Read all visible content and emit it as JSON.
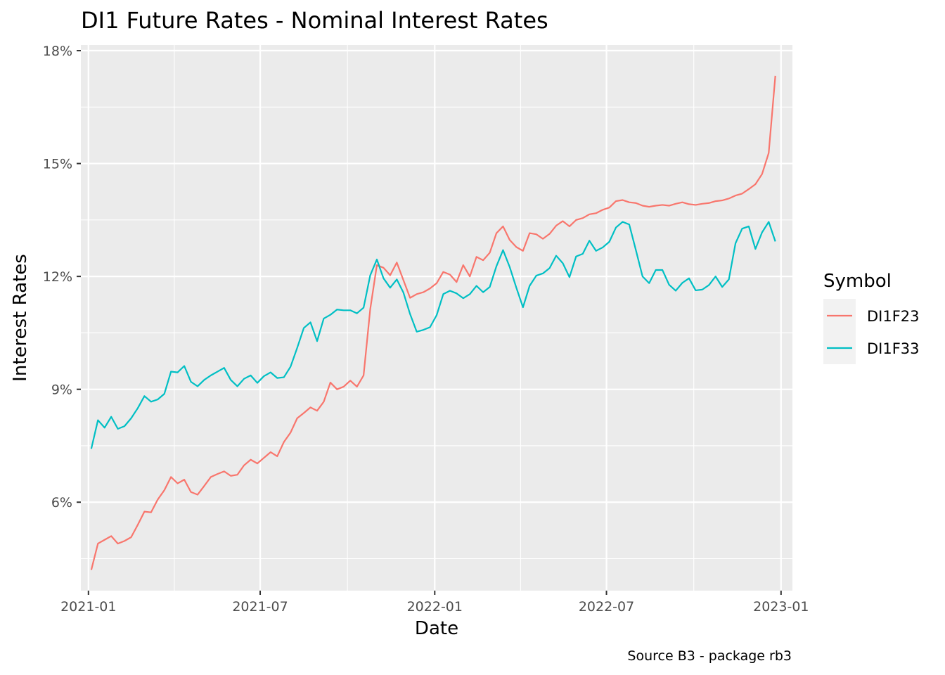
{
  "chart_data": {
    "type": "line",
    "title": "DI1 Future Rates - Nominal Interest Rates",
    "xlabel": "Date",
    "ylabel": "Interest Rates",
    "caption": "Source B3 - package rb3",
    "legend_title": "Symbol",
    "legend_position": "right",
    "grid": true,
    "xlim": [
      "2020-12-24",
      "2023-01-13"
    ],
    "ylim": [
      0.0365,
      0.1815
    ],
    "x_ticks": [
      {
        "date": "2021-01-01",
        "label": "2021-01"
      },
      {
        "date": "2021-07-01",
        "label": "2021-07"
      },
      {
        "date": "2022-01-01",
        "label": "2022-01"
      },
      {
        "date": "2022-07-01",
        "label": "2022-07"
      },
      {
        "date": "2023-01-01",
        "label": "2023-01"
      }
    ],
    "y_ticks": [
      {
        "value": 0.06,
        "label": "6%"
      },
      {
        "value": 0.09,
        "label": "9%"
      },
      {
        "value": 0.12,
        "label": "12%"
      },
      {
        "value": 0.15,
        "label": "15%"
      },
      {
        "value": 0.18,
        "label": "18%"
      }
    ],
    "series": [
      {
        "name": "DI1F23",
        "color": "#F8766D",
        "points": [
          [
            "2021-01-04",
            0.042
          ],
          [
            "2021-01-11",
            0.049
          ],
          [
            "2021-01-18",
            0.05
          ],
          [
            "2021-01-25",
            0.051
          ],
          [
            "2021-02-01",
            0.049
          ],
          [
            "2021-02-08",
            0.0497
          ],
          [
            "2021-02-15",
            0.0507
          ],
          [
            "2021-02-22",
            0.054
          ],
          [
            "2021-03-01",
            0.0575
          ],
          [
            "2021-03-08",
            0.0573
          ],
          [
            "2021-03-15",
            0.0607
          ],
          [
            "2021-03-22",
            0.0632
          ],
          [
            "2021-03-29",
            0.0667
          ],
          [
            "2021-04-05",
            0.065
          ],
          [
            "2021-04-12",
            0.066
          ],
          [
            "2021-04-19",
            0.0627
          ],
          [
            "2021-04-26",
            0.062
          ],
          [
            "2021-05-03",
            0.0643
          ],
          [
            "2021-05-10",
            0.0667
          ],
          [
            "2021-05-17",
            0.0675
          ],
          [
            "2021-05-24",
            0.0682
          ],
          [
            "2021-05-31",
            0.067
          ],
          [
            "2021-06-07",
            0.0673
          ],
          [
            "2021-06-14",
            0.0698
          ],
          [
            "2021-06-21",
            0.0713
          ],
          [
            "2021-06-28",
            0.0703
          ],
          [
            "2021-07-05",
            0.0718
          ],
          [
            "2021-07-12",
            0.0733
          ],
          [
            "2021-07-19",
            0.0722
          ],
          [
            "2021-07-26",
            0.076
          ],
          [
            "2021-08-02",
            0.0785
          ],
          [
            "2021-08-09",
            0.0823
          ],
          [
            "2021-08-16",
            0.0837
          ],
          [
            "2021-08-23",
            0.0852
          ],
          [
            "2021-08-30",
            0.0843
          ],
          [
            "2021-09-06",
            0.0867
          ],
          [
            "2021-09-13",
            0.0918
          ],
          [
            "2021-09-20",
            0.09
          ],
          [
            "2021-09-27",
            0.0907
          ],
          [
            "2021-10-04",
            0.0923
          ],
          [
            "2021-10-11",
            0.0907
          ],
          [
            "2021-10-18",
            0.0937
          ],
          [
            "2021-10-25",
            0.1113
          ],
          [
            "2021-11-01",
            0.123
          ],
          [
            "2021-11-08",
            0.1223
          ],
          [
            "2021-11-15",
            0.1203
          ],
          [
            "2021-11-22",
            0.1237
          ],
          [
            "2021-11-29",
            0.119
          ],
          [
            "2021-12-06",
            0.1143
          ],
          [
            "2021-12-13",
            0.1153
          ],
          [
            "2021-12-20",
            0.1158
          ],
          [
            "2021-12-27",
            0.1168
          ],
          [
            "2022-01-03",
            0.1182
          ],
          [
            "2022-01-10",
            0.1212
          ],
          [
            "2022-01-17",
            0.1205
          ],
          [
            "2022-01-24",
            0.1185
          ],
          [
            "2022-01-31",
            0.123
          ],
          [
            "2022-02-07",
            0.12
          ],
          [
            "2022-02-14",
            0.1252
          ],
          [
            "2022-02-21",
            0.1243
          ],
          [
            "2022-02-28",
            0.1263
          ],
          [
            "2022-03-07",
            0.1315
          ],
          [
            "2022-03-14",
            0.1333
          ],
          [
            "2022-03-21",
            0.1297
          ],
          [
            "2022-03-28",
            0.1278
          ],
          [
            "2022-04-04",
            0.1268
          ],
          [
            "2022-04-11",
            0.1315
          ],
          [
            "2022-04-18",
            0.1312
          ],
          [
            "2022-04-25",
            0.13
          ],
          [
            "2022-05-02",
            0.1313
          ],
          [
            "2022-05-09",
            0.1335
          ],
          [
            "2022-05-16",
            0.1347
          ],
          [
            "2022-05-23",
            0.1333
          ],
          [
            "2022-05-30",
            0.135
          ],
          [
            "2022-06-06",
            0.1355
          ],
          [
            "2022-06-13",
            0.1365
          ],
          [
            "2022-06-20",
            0.1368
          ],
          [
            "2022-06-27",
            0.1377
          ],
          [
            "2022-07-04",
            0.1383
          ],
          [
            "2022-07-11",
            0.14
          ],
          [
            "2022-07-18",
            0.1403
          ],
          [
            "2022-07-25",
            0.1397
          ],
          [
            "2022-08-01",
            0.1395
          ],
          [
            "2022-08-08",
            0.1388
          ],
          [
            "2022-08-15",
            0.1385
          ],
          [
            "2022-08-22",
            0.1388
          ],
          [
            "2022-08-29",
            0.139
          ],
          [
            "2022-09-05",
            0.1388
          ],
          [
            "2022-09-12",
            0.1393
          ],
          [
            "2022-09-19",
            0.1397
          ],
          [
            "2022-09-26",
            0.1392
          ],
          [
            "2022-10-03",
            0.139
          ],
          [
            "2022-10-10",
            0.1393
          ],
          [
            "2022-10-17",
            0.1395
          ],
          [
            "2022-10-24",
            0.14
          ],
          [
            "2022-10-31",
            0.1402
          ],
          [
            "2022-11-07",
            0.1407
          ],
          [
            "2022-11-14",
            0.1415
          ],
          [
            "2022-11-21",
            0.142
          ],
          [
            "2022-11-28",
            0.1432
          ],
          [
            "2022-12-05",
            0.1445
          ],
          [
            "2022-12-12",
            0.1472
          ],
          [
            "2022-12-19",
            0.1528
          ],
          [
            "2022-12-26",
            0.1733
          ]
        ]
      },
      {
        "name": "DI1F33",
        "color": "#00BFC4",
        "points": [
          [
            "2021-01-04",
            0.0742
          ],
          [
            "2021-01-11",
            0.0818
          ],
          [
            "2021-01-18",
            0.0798
          ],
          [
            "2021-01-25",
            0.0827
          ],
          [
            "2021-02-01",
            0.0795
          ],
          [
            "2021-02-08",
            0.0802
          ],
          [
            "2021-02-15",
            0.0823
          ],
          [
            "2021-02-22",
            0.085
          ],
          [
            "2021-03-01",
            0.0882
          ],
          [
            "2021-03-08",
            0.0867
          ],
          [
            "2021-03-15",
            0.0873
          ],
          [
            "2021-03-22",
            0.0888
          ],
          [
            "2021-03-29",
            0.0947
          ],
          [
            "2021-04-05",
            0.0945
          ],
          [
            "2021-04-12",
            0.0962
          ],
          [
            "2021-04-19",
            0.092
          ],
          [
            "2021-04-26",
            0.0908
          ],
          [
            "2021-05-03",
            0.0925
          ],
          [
            "2021-05-10",
            0.0937
          ],
          [
            "2021-05-17",
            0.0947
          ],
          [
            "2021-05-24",
            0.0957
          ],
          [
            "2021-05-31",
            0.0925
          ],
          [
            "2021-06-07",
            0.0908
          ],
          [
            "2021-06-14",
            0.0928
          ],
          [
            "2021-06-21",
            0.0937
          ],
          [
            "2021-06-28",
            0.0917
          ],
          [
            "2021-07-05",
            0.0935
          ],
          [
            "2021-07-12",
            0.0945
          ],
          [
            "2021-07-19",
            0.093
          ],
          [
            "2021-07-26",
            0.0932
          ],
          [
            "2021-08-02",
            0.096
          ],
          [
            "2021-08-09",
            0.101
          ],
          [
            "2021-08-16",
            0.1063
          ],
          [
            "2021-08-23",
            0.1078
          ],
          [
            "2021-08-30",
            0.1028
          ],
          [
            "2021-09-06",
            0.1088
          ],
          [
            "2021-09-13",
            0.1098
          ],
          [
            "2021-09-20",
            0.1112
          ],
          [
            "2021-09-27",
            0.111
          ],
          [
            "2021-10-04",
            0.111
          ],
          [
            "2021-10-11",
            0.1102
          ],
          [
            "2021-10-18",
            0.1117
          ],
          [
            "2021-10-25",
            0.1203
          ],
          [
            "2021-11-01",
            0.1245
          ],
          [
            "2021-11-08",
            0.1195
          ],
          [
            "2021-11-15",
            0.117
          ],
          [
            "2021-11-22",
            0.1192
          ],
          [
            "2021-11-29",
            0.1157
          ],
          [
            "2021-12-06",
            0.11
          ],
          [
            "2021-12-13",
            0.1053
          ],
          [
            "2021-12-20",
            0.1058
          ],
          [
            "2021-12-27",
            0.1065
          ],
          [
            "2022-01-03",
            0.1097
          ],
          [
            "2022-01-10",
            0.1153
          ],
          [
            "2022-01-17",
            0.1162
          ],
          [
            "2022-01-24",
            0.1155
          ],
          [
            "2022-01-31",
            0.1142
          ],
          [
            "2022-02-07",
            0.1153
          ],
          [
            "2022-02-14",
            0.1175
          ],
          [
            "2022-02-21",
            0.1158
          ],
          [
            "2022-02-28",
            0.1172
          ],
          [
            "2022-03-07",
            0.1227
          ],
          [
            "2022-03-14",
            0.127
          ],
          [
            "2022-03-21",
            0.1225
          ],
          [
            "2022-03-28",
            0.117
          ],
          [
            "2022-04-04",
            0.1118
          ],
          [
            "2022-04-11",
            0.1175
          ],
          [
            "2022-04-18",
            0.1202
          ],
          [
            "2022-04-25",
            0.1208
          ],
          [
            "2022-05-02",
            0.1222
          ],
          [
            "2022-05-09",
            0.1255
          ],
          [
            "2022-05-16",
            0.1235
          ],
          [
            "2022-05-23",
            0.1198
          ],
          [
            "2022-05-30",
            0.1253
          ],
          [
            "2022-06-06",
            0.126
          ],
          [
            "2022-06-13",
            0.1295
          ],
          [
            "2022-06-20",
            0.1268
          ],
          [
            "2022-06-27",
            0.1277
          ],
          [
            "2022-07-04",
            0.1292
          ],
          [
            "2022-07-11",
            0.133
          ],
          [
            "2022-07-18",
            0.1345
          ],
          [
            "2022-07-25",
            0.1338
          ],
          [
            "2022-08-01",
            0.127
          ],
          [
            "2022-08-08",
            0.12
          ],
          [
            "2022-08-15",
            0.1182
          ],
          [
            "2022-08-22",
            0.1217
          ],
          [
            "2022-08-29",
            0.1217
          ],
          [
            "2022-09-05",
            0.1178
          ],
          [
            "2022-09-12",
            0.1162
          ],
          [
            "2022-09-19",
            0.1183
          ],
          [
            "2022-09-26",
            0.1195
          ],
          [
            "2022-10-03",
            0.1163
          ],
          [
            "2022-10-10",
            0.1165
          ],
          [
            "2022-10-17",
            0.1177
          ],
          [
            "2022-10-24",
            0.12
          ],
          [
            "2022-10-31",
            0.1172
          ],
          [
            "2022-11-07",
            0.1192
          ],
          [
            "2022-11-14",
            0.1288
          ],
          [
            "2022-11-21",
            0.1327
          ],
          [
            "2022-11-28",
            0.1333
          ],
          [
            "2022-12-05",
            0.1273
          ],
          [
            "2022-12-12",
            0.1317
          ],
          [
            "2022-12-19",
            0.1345
          ],
          [
            "2022-12-26",
            0.1293
          ]
        ]
      }
    ]
  }
}
